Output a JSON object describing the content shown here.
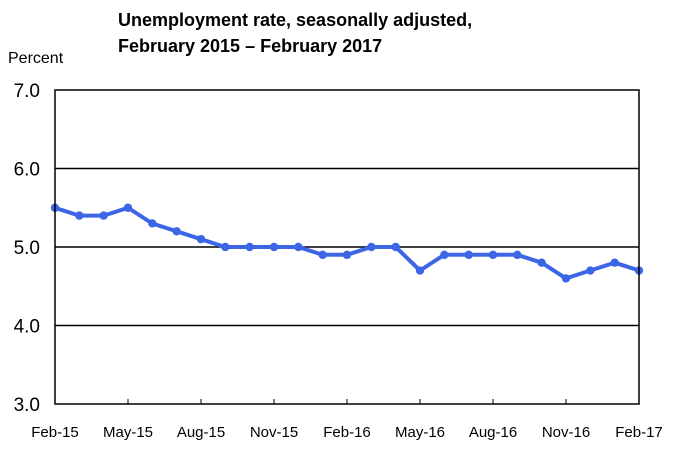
{
  "chart_data": {
    "type": "line",
    "title": "Unemployment rate, seasonally adjusted,",
    "subtitle": "February 2015 – February 2017",
    "ylabel": "Percent",
    "xlabel": "",
    "ylim": [
      3.0,
      7.0
    ],
    "yticks": [
      "7.0",
      "6.0",
      "5.0",
      "4.0",
      "3.0"
    ],
    "ytick_values": [
      7.0,
      6.0,
      5.0,
      4.0,
      3.0
    ],
    "grid": true,
    "xtick_labels": [
      "Feb-15",
      "May-15",
      "Aug-15",
      "Nov-15",
      "Feb-16",
      "May-16",
      "Aug-16",
      "Nov-16",
      "Feb-17"
    ],
    "x": [
      "Feb-15",
      "Mar-15",
      "Apr-15",
      "May-15",
      "Jun-15",
      "Jul-15",
      "Aug-15",
      "Sep-15",
      "Oct-15",
      "Nov-15",
      "Dec-15",
      "Jan-16",
      "Feb-16",
      "Mar-16",
      "Apr-16",
      "May-16",
      "Jun-16",
      "Jul-16",
      "Aug-16",
      "Sep-16",
      "Oct-16",
      "Nov-16",
      "Dec-16",
      "Jan-17",
      "Feb-17"
    ],
    "series": [
      {
        "color": "#3d66e6",
        "values": [
          5.5,
          5.4,
          5.4,
          5.5,
          5.3,
          5.2,
          5.1,
          5.0,
          5.0,
          5.0,
          5.0,
          4.9,
          4.9,
          5.0,
          5.0,
          4.7,
          4.9,
          4.9,
          4.9,
          4.9,
          4.8,
          4.6,
          4.7,
          4.8,
          4.7
        ]
      }
    ]
  }
}
